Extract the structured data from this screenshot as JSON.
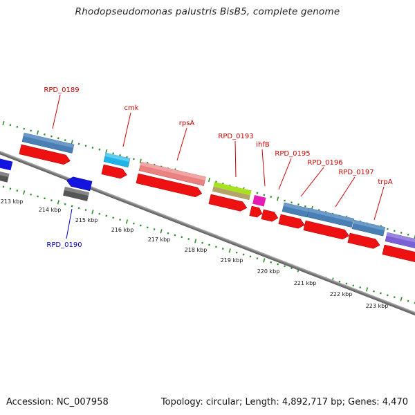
{
  "title": "Rhodopseudomonas palustris BisB5, complete genome",
  "footer": {
    "accession": "Accession: NC_007958",
    "summary": "Topology: circular; Length: 4,892,717 bp; Genes: 4,470"
  },
  "colors": {
    "label_red": "#cc0000",
    "label_blue": "#0000bb",
    "tick_green": "#2a8a2a",
    "backbone": "#888888"
  },
  "scale": {
    "unit": "kbp",
    "ticks": [
      "213 kbp",
      "214 kbp",
      "215 kbp",
      "216 kbp",
      "217 kbp",
      "218 kbp",
      "219 kbp",
      "220 kbp",
      "221 kbp",
      "222 kbp",
      "223 kbp"
    ]
  },
  "gene_labels": [
    "RPD_0189",
    "cmk",
    "rpsA",
    "RPD_0193",
    "ihfB",
    "RPD_0195",
    "RPD_0196",
    "RPD_0197",
    "trpA",
    "RPD_0190"
  ]
}
